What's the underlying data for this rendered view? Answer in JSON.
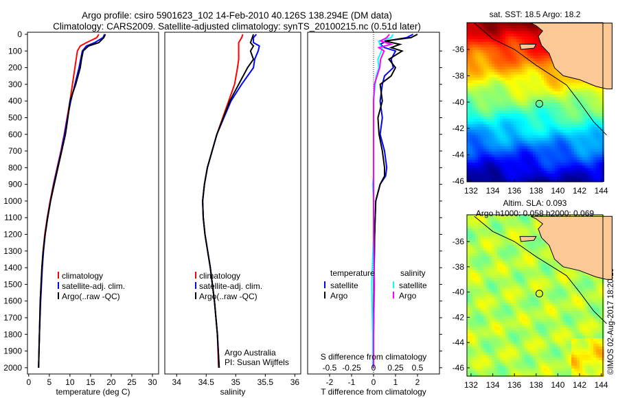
{
  "title": {
    "line1": "Argo profile: csiro 5901623_102 14-Feb-2010 40.126S 138.294E (DM data)",
    "line2": "Climatology: CARS2009. Satellite-adjusted climatology: synTS_20100215.nc (0.51d later)"
  },
  "colors": {
    "climatology": "#ff0000",
    "satellite": "#0000ff",
    "argo": "#000000",
    "sal_satellite": "#00ffff",
    "sal_argo": "#ff00ff",
    "land": "#fcc896"
  },
  "chart_data": [
    {
      "type": "line",
      "id": "temperature",
      "xlabel": "temperature (deg C)",
      "ylabel": "",
      "xlim": [
        -0.3,
        31.5
      ],
      "ylim": [
        0,
        2050
      ],
      "xticks": [
        0,
        5,
        10,
        15,
        20,
        25,
        30
      ],
      "yticks": [
        0,
        100,
        200,
        300,
        400,
        500,
        600,
        700,
        800,
        900,
        1000,
        1100,
        1200,
        1300,
        1400,
        1500,
        1600,
        1700,
        1800,
        1900,
        2000
      ],
      "legend": [
        "climatology",
        "satellite-adj. clim.",
        "Argo(..raw -QC)"
      ],
      "depth": [
        0,
        20,
        50,
        70,
        100,
        150,
        200,
        300,
        400,
        500,
        600,
        700,
        800,
        900,
        1000,
        1100,
        1200,
        1300,
        1400,
        1500,
        1600,
        1800,
        2000
      ],
      "series": [
        {
          "name": "climatology",
          "values": [
            17.0,
            16.5,
            14.0,
            12.5,
            11.8,
            11.5,
            11.2,
            10.6,
            10.0,
            9.3,
            8.6,
            7.8,
            6.9,
            6.0,
            5.2,
            4.5,
            3.9,
            3.5,
            3.2,
            3.0,
            2.8,
            2.6,
            2.4
          ]
        },
        {
          "name": "satellite-adj. clim.",
          "values": [
            18.4,
            18.0,
            16.0,
            14.0,
            13.0,
            12.6,
            12.2,
            11.2,
            10.2,
            9.4,
            8.7,
            7.9,
            7.0,
            6.1,
            5.3,
            4.6,
            4.0,
            3.6,
            3.3,
            3.1,
            2.9,
            2.6,
            2.4
          ]
        },
        {
          "name": "Argo(..raw -QC)",
          "values": [
            18.6,
            18.2,
            17.0,
            14.5,
            13.2,
            12.8,
            12.5,
            11.4,
            10.0,
            9.5,
            8.9,
            8.0,
            7.1,
            6.2,
            5.3,
            4.6,
            4.0,
            3.5,
            3.2,
            3.0,
            2.8,
            2.6,
            2.4
          ]
        }
      ]
    },
    {
      "type": "line",
      "id": "salinity",
      "xlabel": "salinity",
      "xlim": [
        33.8,
        36.1
      ],
      "ylim": [
        0,
        2050
      ],
      "xticks": [
        34,
        34.5,
        35,
        35.5,
        36
      ],
      "legend": [
        "climatology",
        "satellite-adj. clim.",
        "Argo(..raw -QC)"
      ],
      "annotation": [
        "Argo Australia",
        "PI: Susan Wijffels"
      ],
      "depth": [
        0,
        20,
        50,
        70,
        100,
        150,
        200,
        300,
        400,
        500,
        600,
        700,
        800,
        900,
        1000,
        1100,
        1200,
        1400,
        1600,
        1800,
        2000
      ],
      "series": [
        {
          "name": "climatology",
          "values": [
            35.12,
            35.1,
            35.05,
            35.05,
            35.05,
            35.05,
            35.03,
            34.98,
            34.88,
            34.78,
            34.68,
            34.6,
            34.52,
            34.47,
            34.44,
            34.45,
            34.48,
            34.57,
            34.64,
            34.69,
            34.71
          ]
        },
        {
          "name": "satellite-adj. clim.",
          "values": [
            35.35,
            35.3,
            35.3,
            35.4,
            35.38,
            35.32,
            35.3,
            35.1,
            34.92,
            34.8,
            34.68,
            34.6,
            34.52,
            34.47,
            34.44,
            34.45,
            34.48,
            34.57,
            34.64,
            34.69,
            34.72
          ]
        },
        {
          "name": "Argo(..raw -QC)",
          "values": [
            35.3,
            35.28,
            35.25,
            35.3,
            35.25,
            35.3,
            35.2,
            35.05,
            34.9,
            34.79,
            34.68,
            34.6,
            34.52,
            34.47,
            34.44,
            34.45,
            34.48,
            34.57,
            34.64,
            34.69,
            34.72
          ]
        }
      ]
    },
    {
      "type": "line",
      "id": "difference",
      "xlabel": "T difference from climatology",
      "xlabel2": "S difference from climatology",
      "xlim": [
        -3,
        3
      ],
      "ylim": [
        0,
        2050
      ],
      "xticks": [
        -2,
        -1,
        0,
        1,
        2
      ],
      "xticks2": [
        "-0.5",
        "-0.25",
        "0",
        "0.25",
        "0.5"
      ],
      "xticks2_values": [
        -0.5,
        -0.25,
        0,
        0.25,
        0.5
      ],
      "legend_titles": [
        "temperature",
        "salinity"
      ],
      "legend": [
        "satellite",
        "Argo",
        "satellite",
        "Argo"
      ],
      "depth": [
        0,
        20,
        40,
        60,
        80,
        100,
        150,
        200,
        250,
        300,
        400,
        500,
        600,
        700,
        800,
        850,
        900,
        1000,
        1200,
        1500,
        1800,
        2000
      ],
      "series": [
        {
          "name": "T satellite",
          "unit": "T",
          "values": [
            1.8,
            1.5,
            0.6,
            0.3,
            0.5,
            1.0,
            0.8,
            0.9,
            0.5,
            0.4,
            0.3,
            0.4,
            0.3,
            0.5,
            0.6,
            0.55,
            0.3,
            0.1,
            0.05,
            0.02,
            0.0,
            0.0
          ]
        },
        {
          "name": "T Argo",
          "unit": "T",
          "values": [
            2.0,
            1.7,
            0.5,
            1.2,
            0.8,
            1.3,
            0.7,
            1.0,
            0.8,
            0.3,
            0.4,
            0.2,
            0.25,
            0.4,
            0.5,
            0.5,
            0.3,
            0.1,
            0.05,
            0.02,
            0.0,
            0.0
          ]
        },
        {
          "name": "S satellite",
          "unit": "S",
          "values": [
            0.22,
            0.2,
            0.06,
            0.07,
            0.1,
            0.09,
            0.05,
            0.06,
            0.03,
            0.02,
            0.0,
            0.0,
            0.0,
            0.0,
            0.0,
            0.0,
            -0.01,
            0.0,
            0.0,
            -0.02,
            -0.01,
            -0.01
          ]
        },
        {
          "name": "S Argo",
          "unit": "S",
          "values": [
            0.18,
            0.15,
            0.08,
            0.2,
            0.06,
            0.12,
            0.08,
            0.07,
            0.04,
            0.01,
            0.0,
            0.0,
            0.0,
            0.0,
            0.0,
            0.0,
            0.0,
            0.0,
            0.0,
            0.01,
            0.0,
            0.0
          ]
        }
      ]
    }
  ],
  "maps": [
    {
      "title": "sat. SST: 18.5 Argo: 18.2",
      "xticks": [
        "132",
        "134",
        "136",
        "138",
        "140",
        "142",
        "144"
      ],
      "yticks": [
        "-36",
        "-38",
        "-40",
        "-42",
        "-44",
        "-46"
      ],
      "argo_lon": 138.294,
      "argo_lat": -40.126
    },
    {
      "title": "Altim. SLA: 0.093",
      "title2": "Argo h1000: 0.058 h2000: 0.069",
      "xticks": [
        "132",
        "134",
        "136",
        "138",
        "140",
        "142",
        "144"
      ],
      "yticks": [
        "-36",
        "-38",
        "-40",
        "-42",
        "-44",
        "-46"
      ],
      "argo_lon": 138.294,
      "argo_lat": -40.126
    }
  ],
  "credit": "©IMOS 02-Aug-2017 18:20:19"
}
